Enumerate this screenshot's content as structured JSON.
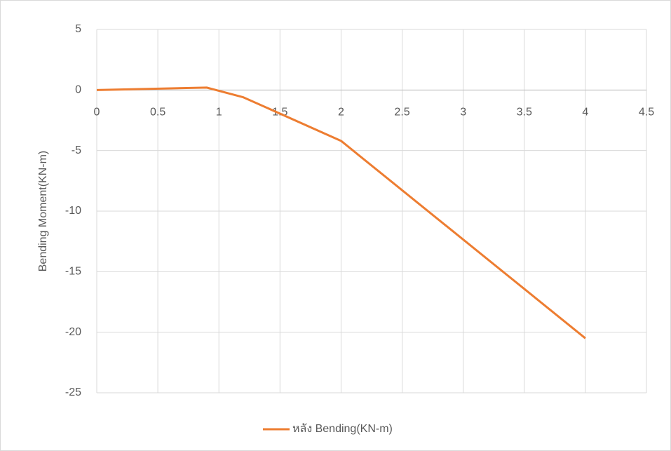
{
  "chart_data": {
    "type": "line",
    "y_label": "Bending Moment(KN-m)",
    "x": [
      0,
      0.9,
      1.2,
      2,
      4
    ],
    "series": [
      {
        "name": "หลัง Bending(KN-m)",
        "color": "#ed7d31",
        "values": [
          0,
          0.2,
          -0.6,
          -4.2,
          -20.5
        ]
      }
    ],
    "xlim": [
      0,
      4.5
    ],
    "xticks": [
      0,
      0.5,
      1,
      1.5,
      2,
      2.5,
      3,
      3.5,
      4,
      4.5
    ],
    "ylim": [
      -25,
      5
    ],
    "yticks": [
      5,
      0,
      -5,
      -10,
      -15,
      -20,
      -25
    ],
    "grid": true,
    "legend": "bottom"
  }
}
